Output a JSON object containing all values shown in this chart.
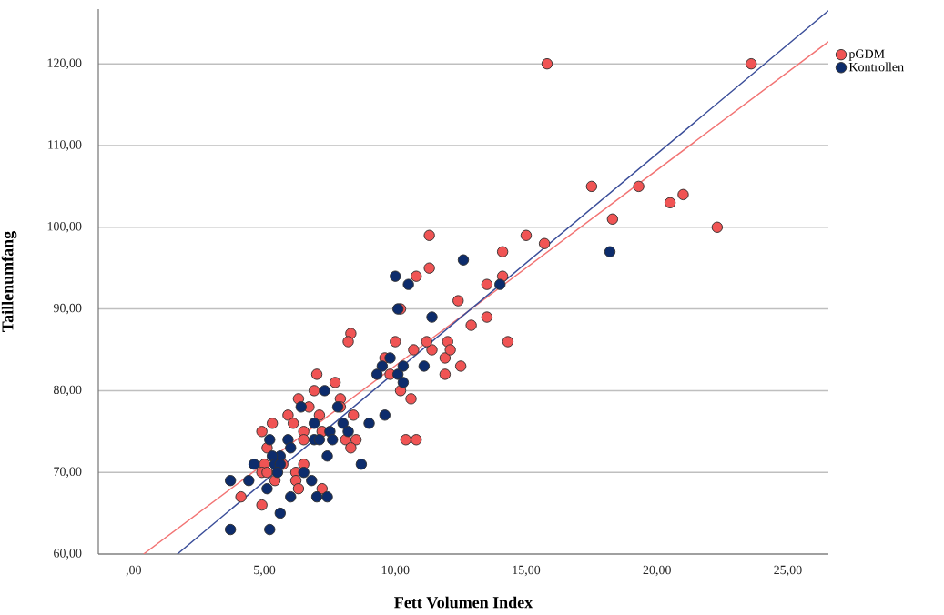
{
  "chart_data": {
    "type": "scatter",
    "xlabel": "Fett Volumen Index",
    "ylabel": "Taillenumfang",
    "xlim": [
      -1.35,
      26.55
    ],
    "ylim": [
      60,
      126.7
    ],
    "xticks": [
      {
        "value": 0,
        "label": ",00"
      },
      {
        "value": 5,
        "label": "5,00"
      },
      {
        "value": 10,
        "label": "10,00"
      },
      {
        "value": 15,
        "label": "15,00"
      },
      {
        "value": 20,
        "label": "20,00"
      },
      {
        "value": 25,
        "label": "25,00"
      }
    ],
    "yticks": [
      {
        "value": 60,
        "label": "60,00"
      },
      {
        "value": 70,
        "label": "70,00"
      },
      {
        "value": 80,
        "label": "80,00"
      },
      {
        "value": 90,
        "label": "90,00"
      },
      {
        "value": 100,
        "label": "100,00"
      },
      {
        "value": 110,
        "label": "110,00"
      },
      {
        "value": 120,
        "label": "120,00"
      }
    ],
    "grid": "y",
    "legend": "top right",
    "series": [
      {
        "name": "pGDM",
        "marker": "circle",
        "color": "#f05454",
        "x": [
          15.8,
          23.6,
          17.5,
          19.3,
          18.3,
          20.5,
          21.0,
          22.3,
          15.0,
          15.7,
          14.1,
          14.1,
          13.5,
          13.5,
          14.3,
          11.3,
          11.3,
          10.8,
          12.4,
          12.9,
          12.5,
          11.9,
          11.9,
          12.0,
          12.1,
          11.4,
          11.2,
          10.7,
          10.0,
          10.2,
          10.6,
          10.2,
          10.4,
          10.8,
          9.8,
          9.6,
          8.3,
          8.2,
          7.0,
          6.9,
          7.7,
          6.3,
          6.7,
          7.9,
          7.9,
          5.9,
          7.1,
          8.4,
          5.3,
          6.1,
          4.9,
          6.5,
          7.2,
          8.1,
          8.5,
          6.5,
          5.1,
          8.3,
          5.0,
          6.5,
          5.7,
          4.9,
          5.1,
          6.2,
          5.4,
          6.2,
          6.3,
          7.2,
          4.1,
          4.9
        ],
        "values": [
          120,
          120,
          105,
          105,
          101,
          103,
          104,
          100,
          99,
          98,
          97,
          94,
          93,
          89,
          86,
          99,
          95,
          94,
          91,
          88,
          83,
          82,
          84,
          86,
          85,
          85,
          86,
          85,
          86,
          90,
          79,
          80,
          74,
          74,
          82,
          84,
          87,
          86,
          82,
          80,
          81,
          79,
          78,
          79,
          78,
          77,
          77,
          77,
          76,
          76,
          75,
          75,
          75,
          74,
          74,
          74,
          73,
          73,
          71,
          71,
          71,
          70,
          70,
          70,
          69,
          69,
          68,
          68,
          67,
          66
        ]
      },
      {
        "name": "Kontrollen",
        "marker": "circle",
        "color": "#0d2c6c",
        "x": [
          18.2,
          12.6,
          10.0,
          10.5,
          10.1,
          11.4,
          14.0,
          9.8,
          9.5,
          9.3,
          10.1,
          10.3,
          11.1,
          10.3,
          9.6,
          7.3,
          6.4,
          7.8,
          6.9,
          7.5,
          8.0,
          8.2,
          9.0,
          5.2,
          5.9,
          6.0,
          6.9,
          7.1,
          7.6,
          5.6,
          5.3,
          5.4,
          5.6,
          4.6,
          5.5,
          6.5,
          6.8,
          7.4,
          8.7,
          3.7,
          4.4,
          5.1,
          6.0,
          7.0,
          7.4,
          5.6,
          3.7,
          5.2
        ],
        "values": [
          97,
          96,
          94,
          93,
          90,
          89,
          93,
          84,
          83,
          82,
          82,
          83,
          83,
          81,
          77,
          80,
          78,
          78,
          76,
          75,
          76,
          75,
          76,
          74,
          74,
          73,
          74,
          74,
          74,
          72,
          72,
          71,
          71,
          71,
          70,
          70,
          69,
          72,
          71,
          69,
          69,
          68,
          67,
          67,
          67,
          65,
          63,
          63
        ]
      },
      {
        "type": "line",
        "marker": "none",
        "color": "#f27474",
        "x": [
          0.38,
          26.55
        ],
        "values": [
          60,
          122.7
        ]
      },
      {
        "type": "line",
        "marker": "none",
        "color": "#3a4d99",
        "x": [
          1.67,
          26.55
        ],
        "values": [
          60,
          126.5
        ]
      }
    ]
  }
}
